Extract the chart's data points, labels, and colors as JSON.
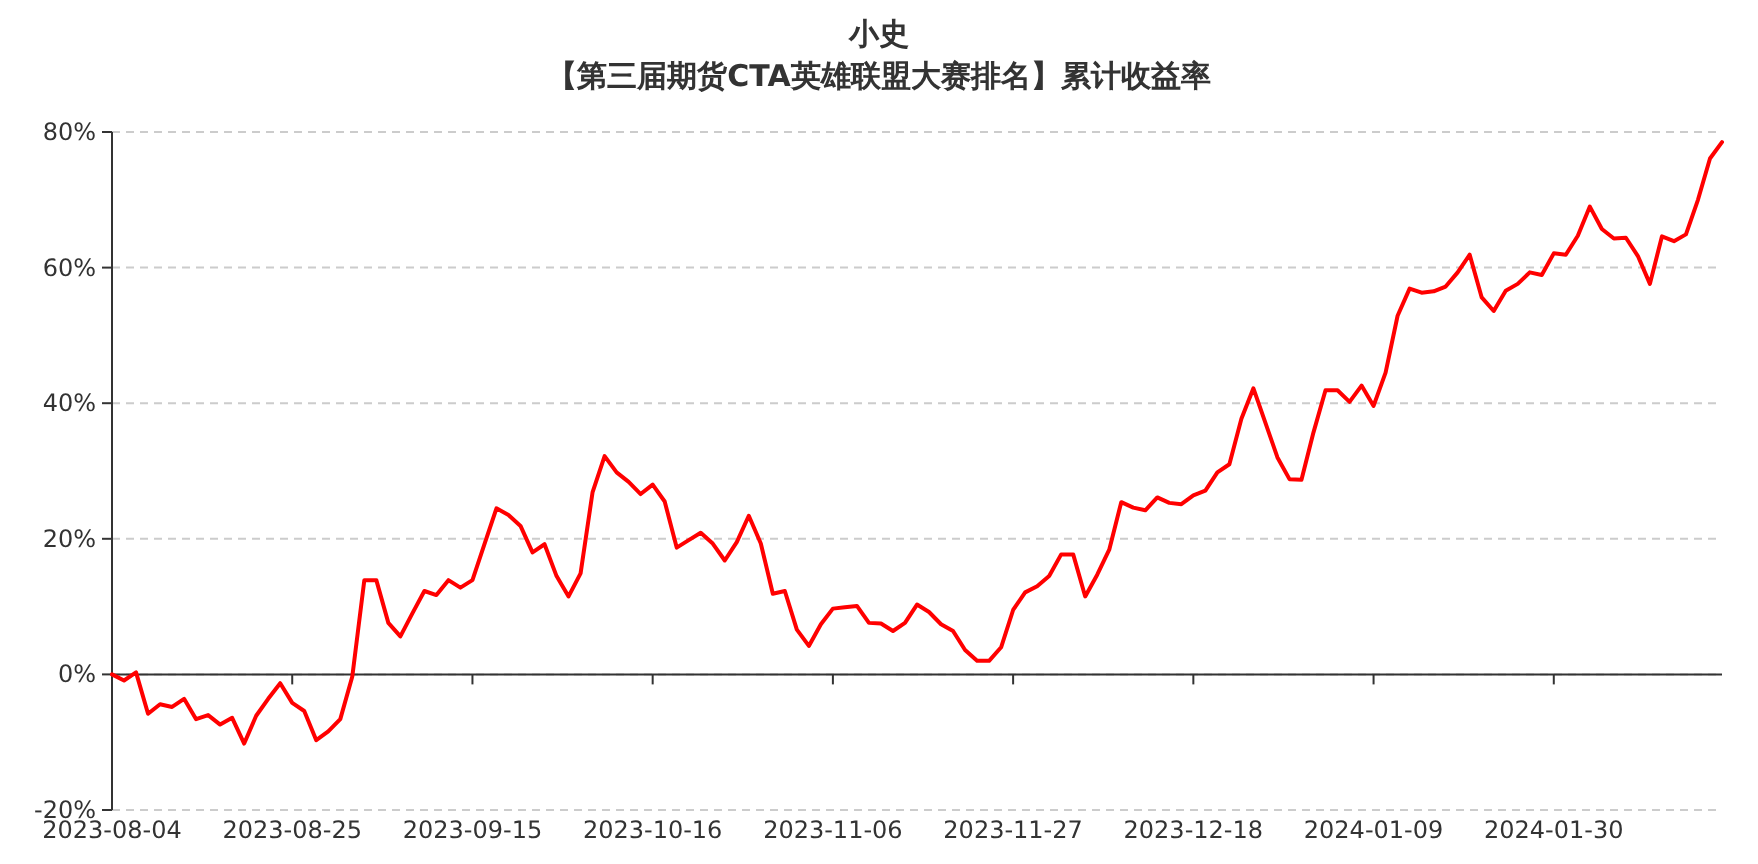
{
  "chart_data": {
    "type": "line",
    "title": "小史",
    "subtitle": "【第三届期货CTA英雄联盟大赛排名】累计收益率",
    "categories": [
      "2023-08-04",
      null,
      null,
      null,
      null,
      null,
      null,
      null,
      null,
      null,
      null,
      null,
      null,
      null,
      null,
      "2023-08-25",
      null,
      null,
      null,
      null,
      null,
      null,
      null,
      null,
      null,
      null,
      null,
      null,
      null,
      null,
      "2023-09-15",
      null,
      null,
      null,
      null,
      null,
      null,
      null,
      null,
      null,
      null,
      null,
      null,
      null,
      null,
      "2023-10-16",
      null,
      null,
      null,
      null,
      null,
      null,
      null,
      null,
      null,
      null,
      null,
      null,
      null,
      null,
      "2023-11-06",
      null,
      null,
      null,
      null,
      null,
      null,
      null,
      null,
      null,
      null,
      null,
      null,
      null,
      null,
      "2023-11-27",
      null,
      null,
      null,
      null,
      null,
      null,
      null,
      null,
      null,
      null,
      null,
      null,
      null,
      null,
      "2023-12-18",
      null,
      null,
      null,
      null,
      null,
      null,
      null,
      null,
      null,
      null,
      null,
      null,
      null,
      null,
      "2024-01-09",
      null,
      null,
      null,
      null,
      null,
      null,
      null,
      null,
      null,
      null,
      null,
      null,
      null,
      null,
      "2024-01-30",
      null,
      null,
      null,
      null,
      null,
      null,
      null,
      null,
      null,
      null,
      null,
      null,
      null,
      null
    ],
    "series": [
      {
        "color": "#ff0000",
        "values": [
          0,
          -0.9,
          0.3,
          -5.8,
          -4.4,
          -4.8,
          -3.6,
          -6.6,
          -6.0,
          -7.4,
          -6.4,
          -10.2,
          -6.1,
          -3.6,
          -1.3,
          -4.2,
          -5.4,
          -9.7,
          -8.4,
          -6.6,
          -0.3,
          13.9,
          13.9,
          7.6,
          5.6,
          9.0,
          12.3,
          11.7,
          13.9,
          12.8,
          13.9,
          19.2,
          24.5,
          23.5,
          21.9,
          18.0,
          19.2,
          14.5,
          11.5,
          14.9,
          26.9,
          32.2,
          29.8,
          28.4,
          26.6,
          28.0,
          25.5,
          18.7,
          19.8,
          20.9,
          19.3,
          16.8,
          19.5,
          23.4,
          19.3,
          11.9,
          12.3,
          6.6,
          4.2,
          7.4,
          9.7,
          9.9,
          10.1,
          7.6,
          7.5,
          6.4,
          7.6,
          10.3,
          9.2,
          7.4,
          6.4,
          3.6,
          2.0,
          2.0,
          4.0,
          9.5,
          12.1,
          13.0,
          14.5,
          17.7,
          17.7,
          11.5,
          14.7,
          18.4,
          25.4,
          24.6,
          24.2,
          26.1,
          25.3,
          25.1,
          26.4,
          27.1,
          29.8,
          31.0,
          37.7,
          42.2,
          37.1,
          32.0,
          28.8,
          28.7,
          35.7,
          41.9,
          41.9,
          40.2,
          42.6,
          39.6,
          44.5,
          52.9,
          56.9,
          56.3,
          56.5,
          57.2,
          59.3,
          61.9,
          55.6,
          53.6,
          56.6,
          57.6,
          59.3,
          58.9,
          62.1,
          61.9,
          64.7,
          69.0,
          65.7,
          64.3,
          64.4,
          61.7,
          57.6,
          64.6,
          63.9,
          64.9,
          70.0,
          76.1,
          78.5
        ]
      }
    ],
    "ylim": [
      -20,
      80
    ],
    "yticks": [
      {
        "value": -20,
        "label": "-20%"
      },
      {
        "value": 0,
        "label": "0%"
      },
      {
        "value": 20,
        "label": "20%"
      },
      {
        "value": 40,
        "label": "40%"
      },
      {
        "value": 60,
        "label": "60%"
      },
      {
        "value": 80,
        "label": "80%"
      }
    ],
    "grid": "y",
    "line_style": "solid"
  }
}
